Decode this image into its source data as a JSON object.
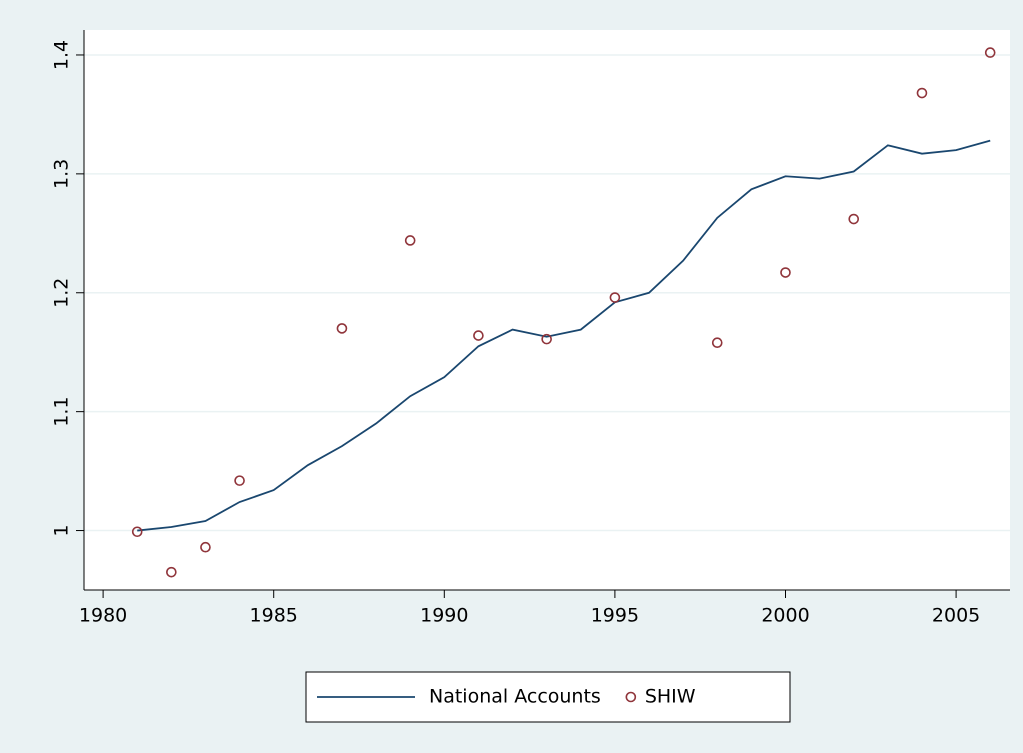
{
  "chart_data": {
    "type": "line",
    "xlim": [
      1979.44,
      2006.58
    ],
    "xticks": [
      1980,
      1985,
      1990,
      1995,
      2000,
      2005
    ],
    "ylim": [
      0.95,
      1.421
    ],
    "yticks": [
      1,
      1.1,
      1.2,
      1.3,
      1.4
    ],
    "grid": true,
    "legend": "bottom",
    "series": [
      {
        "name": "National Accounts",
        "type": "line",
        "color": "#1a476f",
        "x": [
          1981,
          1982,
          1983,
          1984,
          1985,
          1986,
          1987,
          1988,
          1989,
          1990,
          1991,
          1992,
          1993,
          1994,
          1995,
          1996,
          1997,
          1998,
          1999,
          2000,
          2001,
          2002,
          2003,
          2004,
          2005,
          2006
        ],
        "values": [
          1.0,
          1.003,
          1.008,
          1.024,
          1.034,
          1.055,
          1.071,
          1.09,
          1.113,
          1.129,
          1.155,
          1.169,
          1.163,
          1.169,
          1.192,
          1.2,
          1.227,
          1.263,
          1.287,
          1.298,
          1.296,
          1.302,
          1.324,
          1.317,
          1.32,
          1.328
        ]
      },
      {
        "name": "SHIW",
        "type": "scatter",
        "color": "#90353b",
        "x": [
          1981,
          1982,
          1983,
          1984,
          1987,
          1989,
          1991,
          1993,
          1995,
          1998,
          2000,
          2002,
          2004,
          2006
        ],
        "values": [
          0.999,
          0.965,
          0.986,
          1.042,
          1.17,
          1.244,
          1.164,
          1.161,
          1.196,
          1.158,
          1.217,
          1.262,
          1.368,
          1.402
        ]
      }
    ]
  }
}
